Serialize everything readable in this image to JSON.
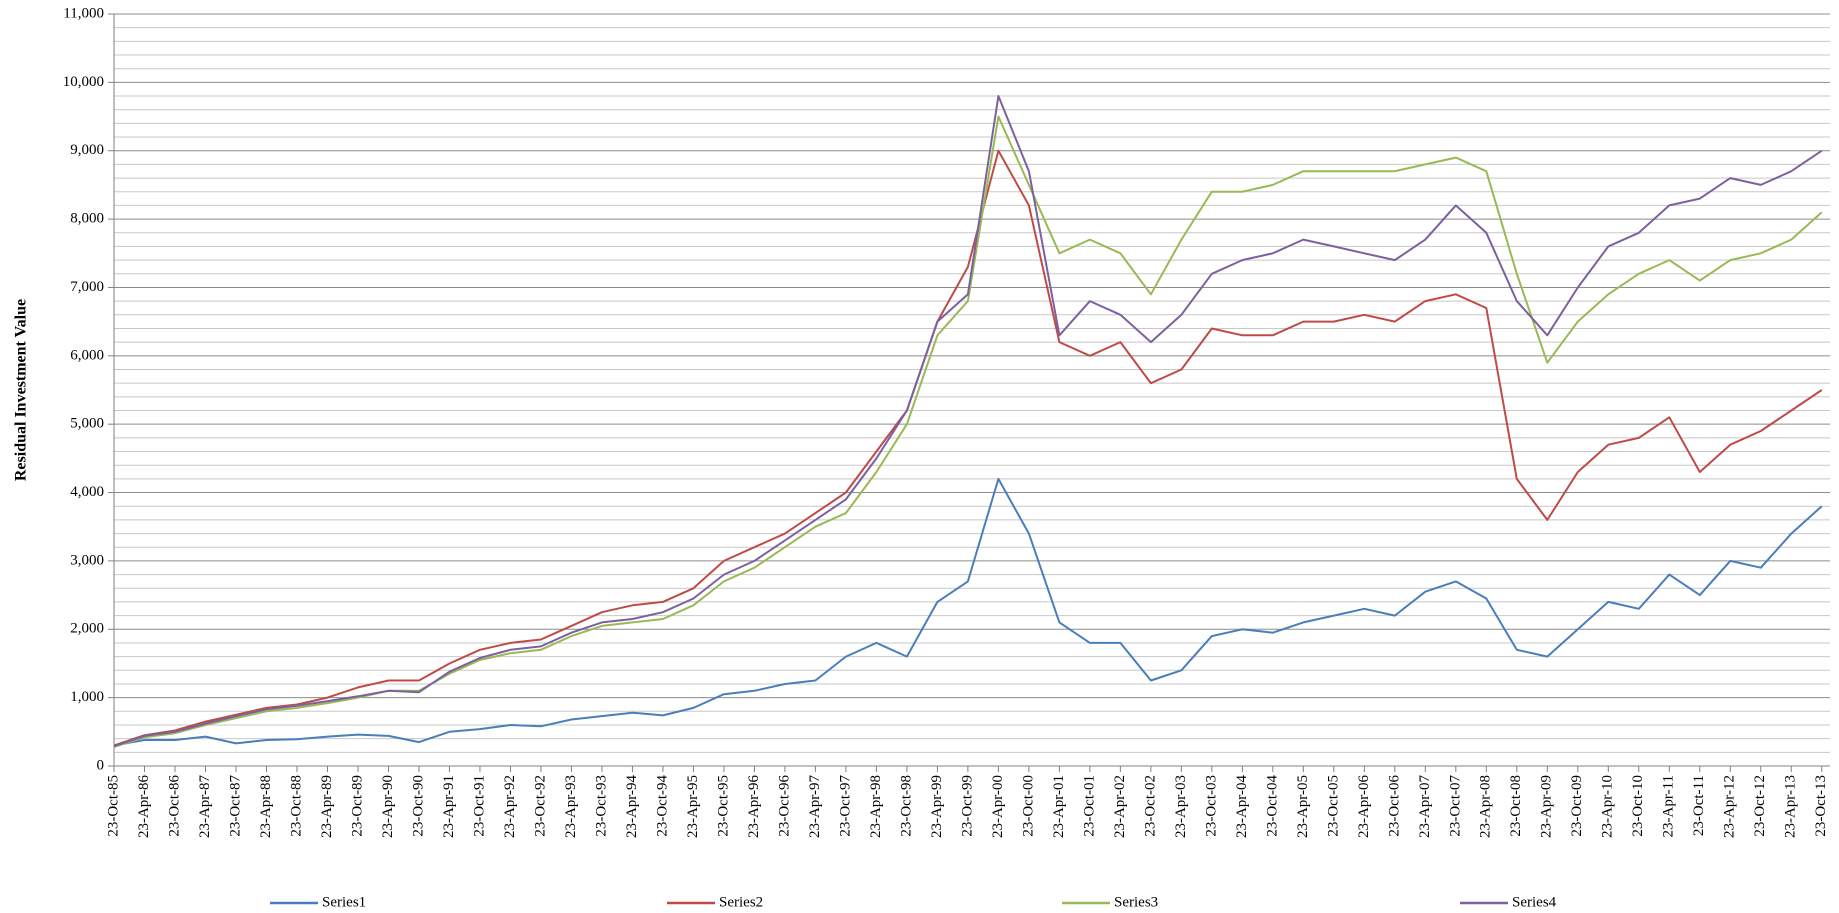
{
  "chart_data": {
    "type": "line",
    "y_label": "Residual Investment Value",
    "ylim": [
      0,
      11000
    ],
    "yticks": [
      0,
      {
        "value": 1000,
        "label": "1,000"
      },
      {
        "value": 2000,
        "label": "2,000"
      },
      {
        "value": 3000,
        "label": "3,000"
      },
      {
        "value": 4000,
        "label": "4,000"
      },
      {
        "value": 5000,
        "label": "5,000"
      },
      {
        "value": 6000,
        "label": "6,000"
      },
      {
        "value": 7000,
        "label": "7,000"
      },
      {
        "value": 8000,
        "label": "8,000"
      },
      {
        "value": 9000,
        "label": "9,000"
      },
      {
        "value": 10000,
        "label": "10,000"
      },
      {
        "value": 11000,
        "label": "11,000"
      }
    ],
    "grid": true,
    "legend": "bottom",
    "categories": [
      "23-Oct-85",
      "23-Apr-86",
      "23-Oct-86",
      "23-Apr-87",
      "23-Oct-87",
      "23-Apr-88",
      "23-Oct-88",
      "23-Apr-89",
      "23-Oct-89",
      "23-Apr-90",
      "23-Oct-90",
      "23-Apr-91",
      "23-Oct-91",
      "23-Apr-92",
      "23-Oct-92",
      "23-Apr-93",
      "23-Oct-93",
      "23-Apr-94",
      "23-Oct-94",
      "23-Apr-95",
      "23-Oct-95",
      "23-Apr-96",
      "23-Oct-96",
      "23-Apr-97",
      "23-Oct-97",
      "23-Apr-98",
      "23-Oct-98",
      "23-Apr-99",
      "23-Oct-99",
      "23-Apr-00",
      "23-Oct-00",
      "23-Apr-01",
      "23-Oct-01",
      "23-Apr-02",
      "23-Oct-02",
      "23-Apr-03",
      "23-Oct-03",
      "23-Apr-04",
      "23-Oct-04",
      "23-Apr-05",
      "23-Oct-05",
      "23-Apr-06",
      "23-Oct-06",
      "23-Apr-07",
      "23-Oct-07",
      "23-Apr-08",
      "23-Oct-08",
      "23-Apr-09",
      "23-Oct-09",
      "23-Apr-10",
      "23-Oct-10",
      "23-Apr-11",
      "23-Oct-11",
      "23-Apr-12",
      "23-Oct-12",
      "23-Apr-13",
      "23-Oct-13"
    ],
    "series": [
      {
        "name": "Series1",
        "color": "#4a7ebb",
        "values": [
          300,
          380,
          380,
          430,
          330,
          380,
          390,
          430,
          460,
          440,
          350,
          500,
          540,
          600,
          580,
          680,
          730,
          780,
          740,
          850,
          1050,
          1100,
          1200,
          1250,
          1600,
          1800,
          1600,
          2400,
          2700,
          4200,
          3400,
          2100,
          1800,
          1800,
          1250,
          1400,
          1900,
          2000,
          1950,
          2100,
          2200,
          2300,
          2200,
          2550,
          2700,
          2450,
          1700,
          1600,
          2000,
          2400,
          2300,
          2800,
          2500,
          3000,
          2900,
          3400,
          3800
        ]
      },
      {
        "name": "Series2",
        "color": "#be4b48",
        "values": [
          300,
          450,
          520,
          650,
          750,
          850,
          900,
          1000,
          1150,
          1250,
          1250,
          1500,
          1700,
          1800,
          1850,
          2050,
          2250,
          2350,
          2400,
          2600,
          3000,
          3200,
          3400,
          3700,
          4000,
          4600,
          5200,
          6500,
          7300,
          9000,
          8200,
          6200,
          6000,
          6200,
          5600,
          5800,
          6400,
          6300,
          6300,
          6500,
          6500,
          6600,
          6500,
          6800,
          6900,
          6700,
          4200,
          3600,
          4300,
          4700,
          4800,
          5100,
          4300,
          4700,
          4900,
          5200,
          5500
        ]
      },
      {
        "name": "Series3",
        "color": "#98b954",
        "values": [
          280,
          420,
          480,
          600,
          700,
          800,
          850,
          920,
          1000,
          1100,
          1100,
          1350,
          1550,
          1650,
          1700,
          1900,
          2050,
          2100,
          2150,
          2350,
          2700,
          2900,
          3200,
          3500,
          3700,
          4300,
          5000,
          6300,
          6800,
          9500,
          8500,
          7500,
          7700,
          7500,
          6900,
          7700,
          8400,
          8400,
          8500,
          8700,
          8700,
          8700,
          8700,
          8800,
          8900,
          8700,
          7200,
          5900,
          6500,
          6900,
          7200,
          7400,
          7100,
          7400,
          7500,
          7700,
          8100
        ]
      },
      {
        "name": "Series4",
        "color": "#7d60a0",
        "values": [
          290,
          440,
          500,
          620,
          730,
          830,
          880,
          950,
          1020,
          1100,
          1080,
          1380,
          1580,
          1700,
          1750,
          1950,
          2100,
          2150,
          2250,
          2450,
          2800,
          3000,
          3300,
          3600,
          3900,
          4500,
          5200,
          6500,
          6900,
          9800,
          8700,
          6300,
          6800,
          6600,
          6200,
          6600,
          7200,
          7400,
          7500,
          7700,
          7600,
          7500,
          7400,
          7700,
          8200,
          7800,
          6800,
          6300,
          7000,
          7600,
          7800,
          8200,
          8300,
          8600,
          8500,
          8700,
          9000
        ]
      }
    ]
  }
}
